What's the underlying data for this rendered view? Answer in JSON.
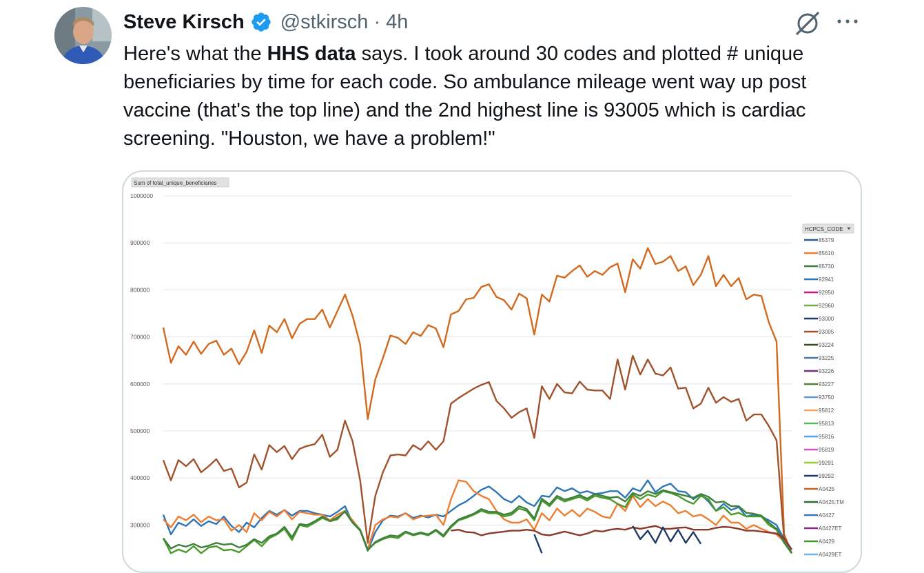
{
  "tweet": {
    "author_name": "Steve Kirsch",
    "handle": "@stkirsch",
    "separator": "·",
    "time": "4h",
    "text_parts": [
      "Here's what the ",
      "HHS data",
      " says. I took around 30 codes and plotted # unique beneficiaries by time for each code. So ambulance mileage went way up post vaccine (that's the top line) and the 2nd highest line is 93005 which is cardiac screening. \"Houston, we have a problem!\""
    ]
  },
  "icons": {
    "verified": "verified-badge-icon",
    "grok": "grok-icon",
    "more": "more-icon"
  },
  "colors": {
    "verified_blue": "#1d9bf0",
    "muted_text": "#536471"
  },
  "chart_data": {
    "type": "line",
    "ylabel_button": "Sum of total_unique_beneficiaries",
    "legend_title": "HCPCS_CODE",
    "y_ticks": [
      1000000,
      900000,
      800000,
      700000,
      600000,
      500000,
      400000,
      300000
    ],
    "y_tick_labels": [
      "1000000",
      "900000",
      "800000",
      "700000",
      "600000",
      "500000",
      "400000",
      "300000"
    ],
    "ylim": [
      250000,
      1000000
    ],
    "grid": true,
    "legend_placement": "right",
    "legend": [
      {
        "name": "85379",
        "color": "#2e5d8a"
      },
      {
        "name": "85610",
        "color": "#ed7d31"
      },
      {
        "name": "85730",
        "color": "#3f7f3f"
      },
      {
        "name": "92941",
        "color": "#2e75b6"
      },
      {
        "name": "92950",
        "color": "#c71585"
      },
      {
        "name": "92960",
        "color": "#70ad47"
      },
      {
        "name": "93000",
        "color": "#1f3864"
      },
      {
        "name": "93005",
        "color": "#a0522d"
      },
      {
        "name": "93224",
        "color": "#2d5016"
      },
      {
        "name": "93225",
        "color": "#4a7aa3"
      },
      {
        "name": "93226",
        "color": "#7b2c7b"
      },
      {
        "name": "93227",
        "color": "#548235"
      },
      {
        "name": "93750",
        "color": "#5b9bd5"
      },
      {
        "name": "95812",
        "color": "#f4a460"
      },
      {
        "name": "95813",
        "color": "#5cb85c"
      },
      {
        "name": "95816",
        "color": "#4fa3e0"
      },
      {
        "name": "95819",
        "color": "#d454c8"
      },
      {
        "name": "99291",
        "color": "#9acd32"
      },
      {
        "name": "99292",
        "color": "#1f3c6e"
      },
      {
        "name": "A0425",
        "color": "#c0622a"
      },
      {
        "name": "A0425:TM",
        "color": "#2e6b2e"
      },
      {
        "name": "A0427",
        "color": "#3c78b4"
      },
      {
        "name": "A0427ET",
        "color": "#8b2a8b"
      },
      {
        "name": "A0429",
        "color": "#4a9a2a"
      },
      {
        "name": "A0429ET",
        "color": "#6fb3e6"
      }
    ],
    "series": [
      {
        "name": "A0425",
        "color": "#d2691e",
        "values": [
          720000,
          645000,
          680000,
          662000,
          690000,
          664000,
          685000,
          692000,
          662000,
          675000,
          642000,
          668000,
          714000,
          666000,
          724000,
          710000,
          738000,
          697000,
          728000,
          738000,
          738000,
          758000,
          720000,
          755000,
          790000,
          745000,
          683000,
          525000,
          610000,
          655000,
          703000,
          698000,
          685000,
          710000,
          702000,
          725000,
          718000,
          678000,
          748000,
          755000,
          780000,
          783000,
          806000,
          812000,
          785000,
          778000,
          758000,
          792000,
          782000,
          705000,
          790000,
          775000,
          830000,
          826000,
          840000,
          852000,
          828000,
          840000,
          832000,
          848000,
          856000,
          795000,
          865000,
          845000,
          889000,
          855000,
          860000,
          872000,
          840000,
          850000,
          810000,
          832000,
          872000,
          808000,
          832000,
          808000,
          825000,
          780000,
          790000,
          787000,
          730000,
          690000,
          280000,
          240000
        ]
      },
      {
        "name": "93005",
        "color": "#a0522d",
        "values": [
          438000,
          395000,
          438000,
          425000,
          440000,
          412000,
          425000,
          440000,
          415000,
          420000,
          380000,
          390000,
          450000,
          418000,
          470000,
          455000,
          468000,
          440000,
          462000,
          468000,
          472000,
          492000,
          445000,
          460000,
          522000,
          478000,
          395000,
          262000,
          362000,
          412000,
          448000,
          450000,
          448000,
          470000,
          460000,
          478000,
          460000,
          478000,
          558000,
          570000,
          580000,
          590000,
          598000,
          604000,
          564000,
          548000,
          528000,
          540000,
          548000,
          485000,
          595000,
          568000,
          600000,
          582000,
          580000,
          605000,
          588000,
          586000,
          586000,
          568000,
          652000,
          588000,
          660000,
          620000,
          652000,
          622000,
          618000,
          635000,
          590000,
          592000,
          548000,
          558000,
          592000,
          560000,
          572000,
          562000,
          568000,
          522000,
          535000,
          535000,
          510000,
          480000,
          270000,
          240000
        ]
      },
      {
        "name": "A0427",
        "color": "#2e75b6",
        "values": [
          322000,
          280000,
          305000,
          298000,
          312000,
          298000,
          308000,
          302000,
          318000,
          298000,
          285000,
          305000,
          295000,
          315000,
          330000,
          322000,
          332000,
          320000,
          330000,
          330000,
          325000,
          322000,
          318000,
          328000,
          340000,
          305000,
          290000,
          245000,
          285000,
          310000,
          320000,
          318000,
          325000,
          315000,
          320000,
          316000,
          322000,
          318000,
          330000,
          342000,
          350000,
          362000,
          375000,
          382000,
          370000,
          355000,
          348000,
          362000,
          348000,
          340000,
          362000,
          360000,
          380000,
          372000,
          378000,
          368000,
          372000,
          366000,
          368000,
          372000,
          372000,
          358000,
          378000,
          372000,
          395000,
          370000,
          382000,
          388000,
          372000,
          370000,
          355000,
          365000,
          350000,
          330000,
          345000,
          332000,
          338000,
          318000,
          322000,
          318000,
          310000,
          300000,
          270000,
          240000
        ]
      },
      {
        "name": "85610",
        "color": "#ed7d31",
        "values": [
          312000,
          295000,
          318000,
          310000,
          322000,
          306000,
          318000,
          310000,
          312000,
          288000,
          300000,
          285000,
          325000,
          310000,
          328000,
          318000,
          332000,
          312000,
          328000,
          325000,
          322000,
          322000,
          310000,
          322000,
          330000,
          310000,
          290000,
          248000,
          300000,
          312000,
          318000,
          316000,
          325000,
          312000,
          318000,
          320000,
          322000,
          300000,
          355000,
          395000,
          392000,
          372000,
          362000,
          355000,
          330000,
          312000,
          305000,
          305000,
          312000,
          290000,
          325000,
          310000,
          335000,
          320000,
          332000,
          318000,
          335000,
          328000,
          318000,
          315000,
          345000,
          330000,
          362000,
          338000,
          355000,
          340000,
          350000,
          342000,
          325000,
          330000,
          318000,
          322000,
          312000,
          300000,
          320000,
          305000,
          305000,
          292000,
          300000,
          292000,
          285000,
          280000,
          265000,
          240000
        ]
      },
      {
        "name": "A0429",
        "color": "#4a9a2a",
        "values": [
          272000,
          240000,
          248000,
          242000,
          255000,
          240000,
          252000,
          255000,
          246000,
          248000,
          242000,
          255000,
          268000,
          255000,
          272000,
          280000,
          292000,
          268000,
          300000,
          296000,
          305000,
          315000,
          308000,
          312000,
          330000,
          306000,
          290000,
          248000,
          262000,
          270000,
          275000,
          272000,
          284000,
          278000,
          282000,
          278000,
          288000,
          275000,
          295000,
          310000,
          315000,
          322000,
          330000,
          325000,
          325000,
          318000,
          322000,
          335000,
          330000,
          310000,
          352000,
          340000,
          358000,
          350000,
          355000,
          360000,
          352000,
          362000,
          358000,
          355000,
          345000,
          338000,
          365000,
          355000,
          365000,
          360000,
          372000,
          368000,
          362000,
          352000,
          345000,
          362000,
          355000,
          330000,
          338000,
          322000,
          326000,
          318000,
          318000,
          318000,
          300000,
          290000,
          262000,
          240000
        ]
      },
      {
        "name": "85730",
        "color": "#3f7f3f",
        "values": [
          272000,
          250000,
          258000,
          254000,
          260000,
          252000,
          256000,
          262000,
          258000,
          260000,
          252000,
          258000,
          270000,
          262000,
          276000,
          282000,
          296000,
          274000,
          302000,
          300000,
          308000,
          318000,
          308000,
          316000,
          328000,
          305000,
          288000,
          246000,
          264000,
          272000,
          278000,
          276000,
          286000,
          280000,
          284000,
          280000,
          290000,
          278000,
          298000,
          312000,
          318000,
          324000,
          334000,
          328000,
          328000,
          322000,
          326000,
          340000,
          334000,
          314000,
          356000,
          344000,
          362000,
          354000,
          358000,
          364000,
          356000,
          366000,
          362000,
          358000,
          360000,
          350000,
          368000,
          362000,
          372000,
          366000,
          374000,
          370000,
          366000,
          362000,
          358000,
          366000,
          360000,
          348000,
          350000,
          340000,
          340000,
          326000,
          324000,
          320000,
          305000,
          292000,
          264000,
          240000
        ]
      },
      {
        "name": "99292",
        "color": "#8b3a2a",
        "values": [
          null,
          null,
          null,
          null,
          null,
          null,
          null,
          null,
          null,
          null,
          null,
          null,
          null,
          null,
          null,
          null,
          null,
          null,
          null,
          null,
          null,
          null,
          null,
          null,
          null,
          null,
          null,
          null,
          null,
          null,
          null,
          null,
          null,
          null,
          null,
          null,
          null,
          null,
          288000,
          290000,
          285000,
          284000,
          278000,
          282000,
          284000,
          286000,
          288000,
          288000,
          290000,
          288000,
          280000,
          278000,
          282000,
          286000,
          282000,
          278000,
          282000,
          288000,
          286000,
          290000,
          292000,
          290000,
          295000,
          292000,
          295000,
          298000,
          292000,
          292000,
          294000,
          295000,
          290000,
          290000,
          290000,
          294000,
          296000,
          295000,
          292000,
          288000,
          288000,
          286000,
          284000,
          282000,
          272000,
          248000
        ]
      },
      {
        "name": "93000",
        "color": "#1f3864",
        "values": [
          null,
          null,
          null,
          null,
          null,
          null,
          null,
          null,
          null,
          null,
          null,
          null,
          null,
          null,
          null,
          null,
          null,
          null,
          null,
          null,
          null,
          null,
          null,
          null,
          null,
          null,
          null,
          null,
          null,
          null,
          null,
          null,
          null,
          null,
          null,
          null,
          null,
          null,
          null,
          null,
          null,
          null,
          null,
          null,
          null,
          null,
          null,
          null,
          null,
          null,
          null,
          null,
          null,
          null,
          null,
          null,
          null,
          null,
          null,
          null,
          null,
          null,
          null,
          null,
          null,
          null,
          null,
          null,
          null,
          null,
          null,
          null,
          null,
          null,
          null,
          null,
          null,
          null,
          null,
          null,
          null,
          null,
          null,
          null
        ]
      },
      {
        "name": "99291",
        "color": "#1f3c6e",
        "values": [
          null,
          null,
          null,
          null,
          null,
          null,
          null,
          null,
          null,
          null,
          null,
          null,
          null,
          null,
          null,
          null,
          null,
          null,
          null,
          null,
          null,
          null,
          null,
          null,
          null,
          null,
          null,
          null,
          null,
          null,
          null,
          null,
          null,
          null,
          null,
          null,
          null,
          null,
          null,
          null,
          null,
          null,
          null,
          null,
          null,
          null,
          null,
          null,
          null,
          280000,
          240000,
          null,
          null,
          null,
          null,
          null,
          null,
          null,
          null,
          null,
          null,
          null,
          null,
          null,
          null,
          null,
          null,
          null,
          null,
          null,
          null,
          null,
          null,
          null,
          null,
          null,
          null,
          null,
          null,
          null,
          null,
          null,
          null,
          null
        ]
      },
      {
        "name": "A0427ET",
        "color": "#1f3864",
        "values": [
          null,
          null,
          null,
          null,
          null,
          null,
          null,
          null,
          null,
          null,
          null,
          null,
          null,
          null,
          null,
          null,
          null,
          null,
          null,
          null,
          null,
          null,
          null,
          null,
          null,
          null,
          null,
          null,
          null,
          null,
          null,
          null,
          null,
          null,
          null,
          null,
          null,
          null,
          null,
          null,
          null,
          null,
          null,
          null,
          null,
          null,
          null,
          null,
          null,
          null,
          null,
          null,
          null,
          null,
          null,
          null,
          null,
          null,
          null,
          null,
          null,
          null,
          298000,
          270000,
          288000,
          262000,
          295000,
          265000,
          290000,
          262000,
          285000,
          260000,
          null,
          null,
          null,
          null,
          null,
          null,
          null,
          null,
          null,
          null,
          null,
          null
        ]
      }
    ]
  }
}
